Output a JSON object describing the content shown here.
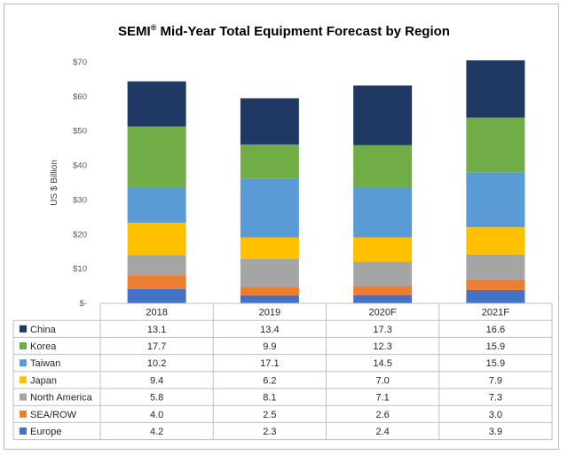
{
  "chart_data": {
    "type": "bar",
    "stacked": true,
    "title_main": "SEMI",
    "title_mark": "®",
    "title_rest": " Mid-Year Total Equipment Forecast by Region",
    "ylabel": "US $ Billion",
    "ylim": [
      0,
      70
    ],
    "yticks": [
      0,
      10,
      20,
      30,
      40,
      50,
      60,
      70
    ],
    "ytick_labels": [
      "$-",
      "$10",
      "$20",
      "$30",
      "$40",
      "$50",
      "$60",
      "$70"
    ],
    "categories": [
      "2018",
      "2019",
      "2020F",
      "2021F"
    ],
    "series": [
      {
        "name": "China",
        "color": "#203864",
        "values": [
          13.1,
          13.4,
          17.3,
          16.6
        ],
        "labels": [
          "13.1",
          "13.4",
          "17.3",
          "16.6"
        ]
      },
      {
        "name": "Korea",
        "color": "#70ad47",
        "values": [
          17.7,
          9.9,
          12.3,
          15.9
        ],
        "labels": [
          "17.7",
          "9.9",
          "12.3",
          "15.9"
        ]
      },
      {
        "name": "Taiwan",
        "color": "#5b9bd5",
        "values": [
          10.2,
          17.1,
          14.5,
          15.9
        ],
        "labels": [
          "10.2",
          "17.1",
          "14.5",
          "15.9"
        ]
      },
      {
        "name": "Japan",
        "color": "#ffc000",
        "values": [
          9.4,
          6.2,
          7.0,
          7.9
        ],
        "labels": [
          "9.4",
          "6.2",
          "7.0",
          "7.9"
        ]
      },
      {
        "name": "North America",
        "color": "#a5a5a5",
        "values": [
          5.8,
          8.1,
          7.1,
          7.3
        ],
        "labels": [
          "5.8",
          "8.1",
          "7.1",
          "7.3"
        ]
      },
      {
        "name": "SEA/ROW",
        "color": "#ed7d31",
        "values": [
          4.0,
          2.5,
          2.6,
          3.0
        ],
        "labels": [
          "4.0",
          "2.5",
          "2.6",
          "3.0"
        ]
      },
      {
        "name": "Europe",
        "color": "#4472c4",
        "values": [
          4.2,
          2.3,
          2.4,
          3.9
        ],
        "labels": [
          "4.2",
          "2.3",
          "2.4",
          "3.9"
        ]
      }
    ]
  }
}
